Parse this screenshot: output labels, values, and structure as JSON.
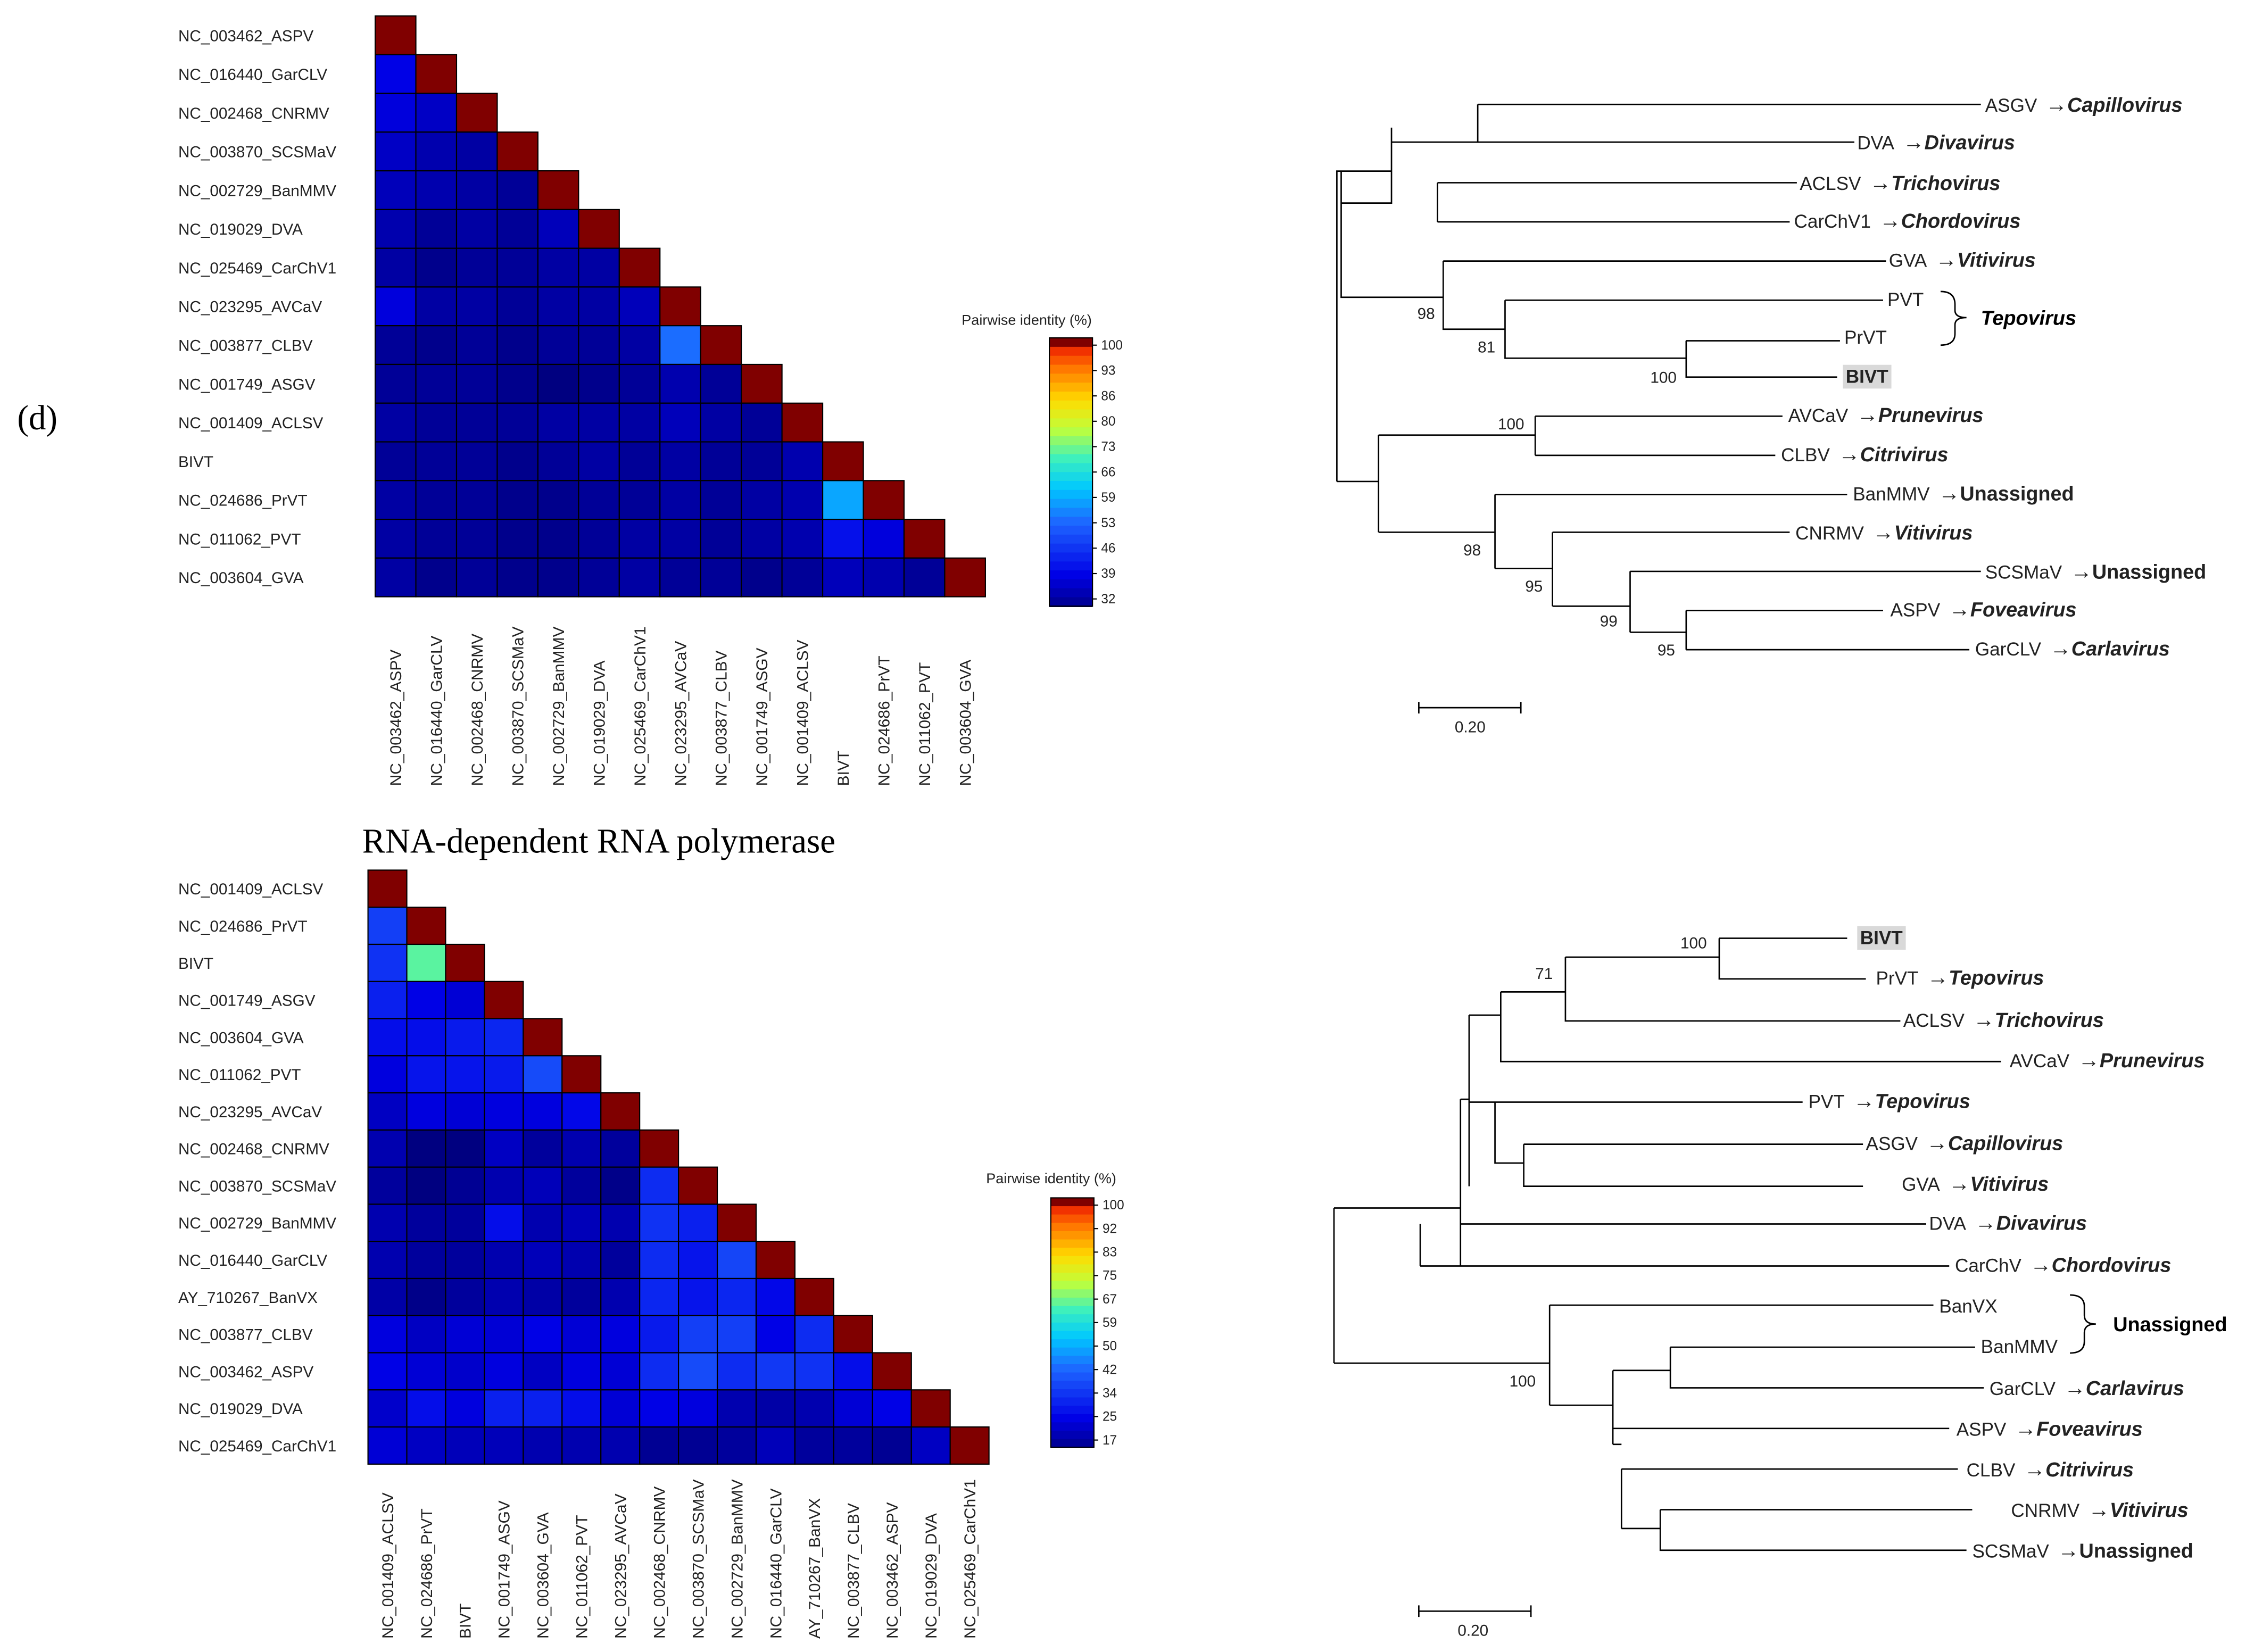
{
  "panel_label": "(d)",
  "section_title": "RNA-dependent RNA polymerase",
  "legend_title": "Pairwise identity (%)",
  "arrow": "→",
  "heatmap_top": {
    "labels": [
      "NC_003462_ASPV",
      "NC_016440_GarCLV",
      "NC_002468_CNRMV",
      "NC_003870_SCSMaV",
      "NC_002729_BanMMV",
      "NC_019029_DVA",
      "NC_025469_CarChV1",
      "NC_023295_AVCaV",
      "NC_003877_CLBV",
      "NC_001749_ASGV",
      "NC_001409_ACLSV",
      "BIVT",
      "NC_024686_PrVT",
      "NC_011062_PVT",
      "NC_003604_GVA"
    ],
    "legend_ticks": [
      "100",
      "93",
      "86",
      "80",
      "73",
      "66",
      "59",
      "53",
      "46",
      "39",
      "32"
    ],
    "vmin": 32,
    "vmax": 100,
    "values": [
      [
        100
      ],
      [
        41,
        100
      ],
      [
        40,
        38,
        100
      ],
      [
        38,
        36,
        35,
        100
      ],
      [
        37,
        36,
        35,
        34,
        100
      ],
      [
        36,
        34,
        35,
        34,
        37,
        100
      ],
      [
        35,
        33,
        34,
        34,
        35,
        35,
        100
      ],
      [
        40,
        35,
        35,
        34,
        35,
        35,
        37,
        100
      ],
      [
        34,
        33,
        34,
        33,
        34,
        34,
        35,
        55,
        100
      ],
      [
        34,
        34,
        34,
        33,
        32,
        33,
        34,
        36,
        34,
        100
      ],
      [
        35,
        34,
        34,
        34,
        35,
        35,
        35,
        37,
        35,
        34,
        100
      ],
      [
        34,
        34,
        34,
        33,
        34,
        35,
        34,
        35,
        34,
        34,
        36,
        100
      ],
      [
        35,
        34,
        34,
        33,
        33,
        34,
        34,
        35,
        34,
        35,
        36,
        60,
        100
      ],
      [
        35,
        34,
        34,
        33,
        33,
        34,
        35,
        35,
        34,
        35,
        36,
        43,
        40,
        100
      ],
      [
        35,
        33,
        34,
        33,
        33,
        34,
        35,
        34,
        34,
        33,
        34,
        37,
        36,
        34,
        100
      ]
    ]
  },
  "heatmap_bottom": {
    "labels": [
      "NC_001409_ACLSV",
      "NC_024686_PrVT",
      "BIVT",
      "NC_001749_ASGV",
      "NC_003604_GVA",
      "NC_011062_PVT",
      "NC_023295_AVCaV",
      "NC_002468_CNRMV",
      "NC_003870_SCSMaV",
      "NC_002729_BanMMV",
      "NC_016440_GarCLV",
      "AY_710267_BanVX",
      "NC_003877_CLBV",
      "NC_003462_ASPV",
      "NC_019029_DVA",
      "NC_025469_CarChV1"
    ],
    "legend_ticks": [
      "100",
      "92",
      "83",
      "75",
      "67",
      "59",
      "50",
      "42",
      "34",
      "25",
      "17"
    ],
    "vmin": 17,
    "vmax": 100,
    "values": [
      [
        100
      ],
      [
        38,
        100
      ],
      [
        36,
        66,
        100
      ],
      [
        33,
        28,
        26,
        100
      ],
      [
        30,
        30,
        32,
        34,
        100
      ],
      [
        27,
        31,
        31,
        32,
        40,
        100
      ],
      [
        24,
        27,
        26,
        27,
        27,
        29,
        100
      ],
      [
        22,
        17,
        17,
        24,
        20,
        22,
        20,
        100
      ],
      [
        20,
        17,
        19,
        22,
        23,
        20,
        18,
        35,
        100
      ],
      [
        22,
        20,
        20,
        30,
        22,
        23,
        22,
        36,
        33,
        100
      ],
      [
        22,
        20,
        20,
        22,
        23,
        22,
        20,
        35,
        31,
        39,
        100
      ],
      [
        21,
        18,
        20,
        22,
        21,
        20,
        22,
        34,
        31,
        34,
        29,
        100
      ],
      [
        27,
        24,
        26,
        26,
        28,
        26,
        27,
        32,
        38,
        38,
        28,
        35,
        100
      ],
      [
        28,
        26,
        25,
        27,
        24,
        27,
        26,
        35,
        40,
        35,
        37,
        36,
        30,
        100
      ],
      [
        25,
        30,
        27,
        33,
        33,
        30,
        26,
        28,
        27,
        22,
        21,
        22,
        26,
        28,
        100
      ],
      [
        26,
        24,
        23,
        23,
        22,
        22,
        22,
        19,
        19,
        20,
        23,
        20,
        20,
        19,
        24,
        100
      ]
    ]
  },
  "tree_top": {
    "bootstrap": [
      "98",
      "81",
      "100",
      "100",
      "98",
      "95",
      "99",
      "95"
    ],
    "scale": "0.20",
    "taxa": [
      {
        "name": "ASGV",
        "genus": "Capillovirus"
      },
      {
        "name": "DVA",
        "genus": "Divavirus"
      },
      {
        "name": "ACLSV",
        "genus": "Trichovirus"
      },
      {
        "name": "CarChV1",
        "genus": "Chordovirus"
      },
      {
        "name": "GVA",
        "genus": "Vitivirus"
      },
      {
        "name": "PVT",
        "genus": ""
      },
      {
        "name": "PrVT",
        "genus": ""
      },
      {
        "name": "BIVT",
        "genus": ""
      },
      {
        "name": "AVCaV",
        "genus": "Prunevirus"
      },
      {
        "name": "CLBV",
        "genus": "Citrivirus"
      },
      {
        "name": "BanMMV",
        "genus": "Unassigned"
      },
      {
        "name": "CNRMV",
        "genus": "Vitivirus"
      },
      {
        "name": "SCSMaV",
        "genus": "Unassigned"
      },
      {
        "name": "ASPV",
        "genus": "Foveavirus"
      },
      {
        "name": "GarCLV",
        "genus": "Carlavirus"
      }
    ],
    "bracket_genus": "Tepovirus"
  },
  "tree_bottom": {
    "bootstrap": [
      "100",
      "71",
      "100"
    ],
    "scale": "0.20",
    "taxa": [
      {
        "name": "BIVT",
        "genus": ""
      },
      {
        "name": "PrVT",
        "genus": "Tepovirus"
      },
      {
        "name": "ACLSV",
        "genus": "Trichovirus"
      },
      {
        "name": "AVCaV",
        "genus": "Prunevirus"
      },
      {
        "name": "PVT",
        "genus": "Tepovirus"
      },
      {
        "name": "ASGV",
        "genus": "Capillovirus"
      },
      {
        "name": "GVA",
        "genus": "Vitivirus"
      },
      {
        "name": "DVA",
        "genus": "Divavirus"
      },
      {
        "name": "CarChV",
        "genus": "Chordovirus"
      },
      {
        "name": "BanVX",
        "genus": ""
      },
      {
        "name": "BanMMV",
        "genus": ""
      },
      {
        "name": "GarCLV",
        "genus": "Carlavirus"
      },
      {
        "name": "ASPV",
        "genus": "Foveavirus"
      },
      {
        "name": "CLBV",
        "genus": "Citrivirus"
      },
      {
        "name": "CNRMV",
        "genus": "Vitivirus"
      },
      {
        "name": "SCSMaV",
        "genus": "Unassigned"
      }
    ],
    "bracket_genus": "Unassigned"
  }
}
